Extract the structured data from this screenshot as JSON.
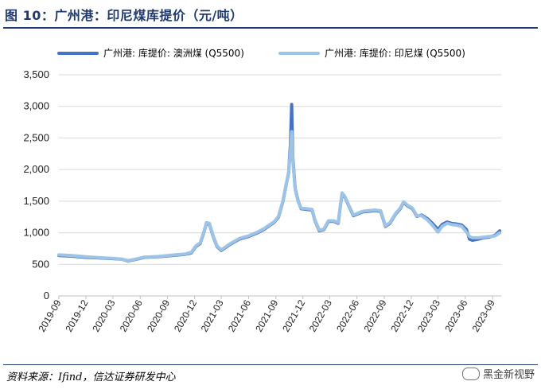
{
  "figure": {
    "title": "图 10：广州港：印尼煤库提价（元/吨）",
    "source": "资料来源：Ifind，信达证券研发中心",
    "watermark": "黑金新视野",
    "watermark_icon": "wechat-icon"
  },
  "chart_data": {
    "type": "line",
    "ylim": [
      0,
      3500
    ],
    "yticks": [
      0,
      500,
      1000,
      1500,
      2000,
      2500,
      3000,
      3500
    ],
    "ytick_labels": [
      "0",
      "500",
      "1,000",
      "1,500",
      "2,000",
      "2,500",
      "3,000",
      "3,500"
    ],
    "xtick_labels": [
      "2019-09",
      "2019-12",
      "2020-03",
      "2020-06",
      "2020-09",
      "2020-12",
      "2021-03",
      "2021-06",
      "2021-09",
      "2021-12",
      "2022-03",
      "2022-06",
      "2022-09",
      "2022-12",
      "2023-03",
      "2023-06",
      "2023-09"
    ],
    "xlim": [
      "2019-09-01",
      "2023-09-30"
    ],
    "grid": true,
    "legend_position": "top",
    "series": [
      {
        "name": "广州港: 库提价: 澳洲煤 (Q5500)",
        "color": "#4472c4",
        "points": [
          [
            "2019-09-01",
            640
          ],
          [
            "2019-10-15",
            630
          ],
          [
            "2019-12-01",
            610
          ],
          [
            "2020-01-15",
            600
          ],
          [
            "2020-03-01",
            590
          ],
          [
            "2020-04-01",
            580
          ],
          [
            "2020-04-20",
            555
          ],
          [
            "2020-05-10",
            570
          ],
          [
            "2020-06-15",
            610
          ],
          [
            "2020-08-01",
            620
          ],
          [
            "2020-09-15",
            640
          ],
          [
            "2020-11-01",
            660
          ],
          [
            "2020-11-20",
            680
          ],
          [
            "2020-12-05",
            780
          ],
          [
            "2020-12-20",
            830
          ],
          [
            "2021-01-01",
            1000
          ],
          [
            "2021-01-10",
            1150
          ],
          [
            "2021-01-20",
            1140
          ],
          [
            "2021-02-01",
            950
          ],
          [
            "2021-02-15",
            780
          ],
          [
            "2021-03-01",
            720
          ],
          [
            "2021-04-01",
            820
          ],
          [
            "2021-05-01",
            900
          ],
          [
            "2021-06-01",
            940
          ],
          [
            "2021-07-01",
            1000
          ],
          [
            "2021-07-25",
            1060
          ],
          [
            "2021-08-15",
            1130
          ],
          [
            "2021-08-25",
            1160
          ],
          [
            "2021-09-10",
            1250
          ],
          [
            "2021-09-25",
            1500
          ],
          [
            "2021-10-05",
            1750
          ],
          [
            "2021-10-14",
            1950
          ],
          [
            "2021-10-20",
            2400
          ],
          [
            "2021-10-24",
            3030
          ],
          [
            "2021-10-28",
            2200
          ],
          [
            "2021-11-05",
            1700
          ],
          [
            "2021-11-15",
            1500
          ],
          [
            "2021-11-25",
            1380
          ],
          [
            "2021-12-15",
            1370
          ],
          [
            "2022-01-01",
            1360
          ],
          [
            "2022-01-10",
            1200
          ],
          [
            "2022-01-25",
            1030
          ],
          [
            "2022-02-10",
            1050
          ],
          [
            "2022-02-25",
            1180
          ],
          [
            "2022-03-15",
            1180
          ],
          [
            "2022-03-30",
            1150
          ],
          [
            "2022-04-05",
            1380
          ],
          [
            "2022-04-12",
            1620
          ],
          [
            "2022-04-22",
            1560
          ],
          [
            "2022-05-05",
            1420
          ],
          [
            "2022-05-20",
            1270
          ],
          [
            "2022-06-05",
            1300
          ],
          [
            "2022-06-20",
            1330
          ],
          [
            "2022-07-10",
            1340
          ],
          [
            "2022-08-01",
            1350
          ],
          [
            "2022-08-20",
            1340
          ],
          [
            "2022-09-05",
            1100
          ],
          [
            "2022-09-20",
            1150
          ],
          [
            "2022-10-10",
            1300
          ],
          [
            "2022-10-25",
            1380
          ],
          [
            "2022-11-05",
            1480
          ],
          [
            "2022-11-20",
            1420
          ],
          [
            "2022-12-05",
            1380
          ],
          [
            "2022-12-20",
            1260
          ],
          [
            "2023-01-05",
            1280
          ],
          [
            "2023-01-25",
            1220
          ],
          [
            "2023-02-10",
            1150
          ],
          [
            "2023-03-01",
            1050
          ],
          [
            "2023-03-15",
            1130
          ],
          [
            "2023-04-01",
            1170
          ],
          [
            "2023-04-15",
            1150
          ],
          [
            "2023-05-01",
            1140
          ],
          [
            "2023-05-20",
            1120
          ],
          [
            "2023-06-05",
            1050
          ],
          [
            "2023-06-15",
            900
          ],
          [
            "2023-06-25",
            880
          ],
          [
            "2023-07-15",
            900
          ],
          [
            "2023-08-01",
            920
          ],
          [
            "2023-08-20",
            930
          ],
          [
            "2023-09-10",
            960
          ],
          [
            "2023-09-25",
            1030
          ]
        ]
      },
      {
        "name": "广州港: 库提价: 印尼煤 (Q5500)",
        "color": "#9dc3e6",
        "points": [
          [
            "2019-09-01",
            650
          ],
          [
            "2019-10-15",
            640
          ],
          [
            "2019-12-01",
            620
          ],
          [
            "2020-01-15",
            605
          ],
          [
            "2020-03-01",
            595
          ],
          [
            "2020-04-01",
            580
          ],
          [
            "2020-04-20",
            560
          ],
          [
            "2020-05-10",
            575
          ],
          [
            "2020-06-15",
            615
          ],
          [
            "2020-08-01",
            625
          ],
          [
            "2020-09-15",
            645
          ],
          [
            "2020-11-01",
            665
          ],
          [
            "2020-11-20",
            690
          ],
          [
            "2020-12-05",
            790
          ],
          [
            "2020-12-20",
            840
          ],
          [
            "2021-01-01",
            1010
          ],
          [
            "2021-01-10",
            1160
          ],
          [
            "2021-01-20",
            1150
          ],
          [
            "2021-02-01",
            960
          ],
          [
            "2021-02-15",
            790
          ],
          [
            "2021-03-01",
            730
          ],
          [
            "2021-04-01",
            830
          ],
          [
            "2021-05-01",
            910
          ],
          [
            "2021-06-01",
            950
          ],
          [
            "2021-07-01",
            1010
          ],
          [
            "2021-07-25",
            1070
          ],
          [
            "2021-08-15",
            1140
          ],
          [
            "2021-08-25",
            1170
          ],
          [
            "2021-09-10",
            1260
          ],
          [
            "2021-09-25",
            1510
          ],
          [
            "2021-10-05",
            1760
          ],
          [
            "2021-10-14",
            1960
          ],
          [
            "2021-10-20",
            2300
          ],
          [
            "2021-10-24",
            2600
          ],
          [
            "2021-10-28",
            2150
          ],
          [
            "2021-11-05",
            1690
          ],
          [
            "2021-11-15",
            1490
          ],
          [
            "2021-11-25",
            1390
          ],
          [
            "2021-12-15",
            1380
          ],
          [
            "2022-01-01",
            1370
          ],
          [
            "2022-01-10",
            1210
          ],
          [
            "2022-01-25",
            1040
          ],
          [
            "2022-02-10",
            1060
          ],
          [
            "2022-02-25",
            1190
          ],
          [
            "2022-03-15",
            1190
          ],
          [
            "2022-03-30",
            1160
          ],
          [
            "2022-04-05",
            1390
          ],
          [
            "2022-04-12",
            1630
          ],
          [
            "2022-04-22",
            1570
          ],
          [
            "2022-05-05",
            1430
          ],
          [
            "2022-05-20",
            1280
          ],
          [
            "2022-06-05",
            1310
          ],
          [
            "2022-06-20",
            1340
          ],
          [
            "2022-07-10",
            1350
          ],
          [
            "2022-08-01",
            1360
          ],
          [
            "2022-08-20",
            1350
          ],
          [
            "2022-09-05",
            1110
          ],
          [
            "2022-09-20",
            1160
          ],
          [
            "2022-10-10",
            1310
          ],
          [
            "2022-10-25",
            1390
          ],
          [
            "2022-11-05",
            1490
          ],
          [
            "2022-11-20",
            1430
          ],
          [
            "2022-12-05",
            1390
          ],
          [
            "2022-12-20",
            1270
          ],
          [
            "2023-01-05",
            1270
          ],
          [
            "2023-01-25",
            1200
          ],
          [
            "2023-02-10",
            1120
          ],
          [
            "2023-03-01",
            1010
          ],
          [
            "2023-03-15",
            1100
          ],
          [
            "2023-04-01",
            1150
          ],
          [
            "2023-04-15",
            1130
          ],
          [
            "2023-05-01",
            1120
          ],
          [
            "2023-05-20",
            1100
          ],
          [
            "2023-06-05",
            1010
          ],
          [
            "2023-06-15",
            940
          ],
          [
            "2023-06-25",
            920
          ],
          [
            "2023-07-15",
            920
          ],
          [
            "2023-08-01",
            930
          ],
          [
            "2023-08-20",
            940
          ],
          [
            "2023-09-10",
            950
          ],
          [
            "2023-09-25",
            1000
          ]
        ]
      }
    ]
  }
}
